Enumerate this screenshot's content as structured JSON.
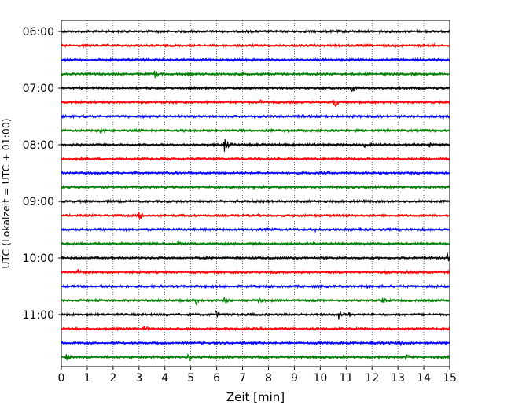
{
  "chart_data": {
    "type": "line",
    "title": "",
    "xlabel": "Zeit  [min]",
    "ylabel": "UTC (Lokalzeit = UTC + 01:00)",
    "xlim": [
      0,
      15
    ],
    "x_ticks": [
      0,
      1,
      2,
      3,
      4,
      5,
      6,
      7,
      8,
      9,
      10,
      11,
      12,
      13,
      14,
      15
    ],
    "grid": "vertical dotted lines at each minute",
    "trace_interval_minutes": 15,
    "color_cycle": [
      "#000000",
      "#ff0000",
      "#0000ff",
      "#008000"
    ],
    "y_tick_labels": [
      "06:00",
      "07:00",
      "08:00",
      "09:00",
      "10:00",
      "11:00"
    ],
    "traces": [
      {
        "start": "06:00",
        "color": "#000000",
        "events": [
          [
            5.0,
            0.35
          ],
          [
            12.3,
            0.4
          ]
        ]
      },
      {
        "start": "06:15",
        "color": "#ff0000",
        "events": [
          [
            1.8,
            0.35
          ],
          [
            14.4,
            0.3
          ]
        ]
      },
      {
        "start": "06:30",
        "color": "#0000ff",
        "events": [
          [
            1.2,
            0.3
          ],
          [
            3.2,
            0.3
          ],
          [
            12.8,
            0.3
          ]
        ]
      },
      {
        "start": "06:45",
        "color": "#008000",
        "events": [
          [
            3.6,
            0.9
          ],
          [
            9.2,
            0.4
          ]
        ]
      },
      {
        "start": "07:00",
        "color": "#000000",
        "events": [
          [
            11.2,
            1.0
          ],
          [
            10.8,
            0.45
          ]
        ]
      },
      {
        "start": "07:15",
        "color": "#ff0000",
        "events": [
          [
            10.5,
            1.3
          ],
          [
            7.7,
            0.55
          ],
          [
            2.0,
            0.3
          ]
        ]
      },
      {
        "start": "07:30",
        "color": "#0000ff",
        "events": [
          [
            2.6,
            0.35
          ],
          [
            9.3,
            0.35
          ]
        ]
      },
      {
        "start": "07:45",
        "color": "#008000",
        "events": [
          [
            1.5,
            0.85
          ],
          [
            7.2,
            0.4
          ],
          [
            11.2,
            0.35
          ]
        ]
      },
      {
        "start": "08:00",
        "color": "#000000",
        "events": [
          [
            6.3,
            1.35
          ],
          [
            11.7,
            0.55
          ],
          [
            14.2,
            0.6
          ]
        ]
      },
      {
        "start": "08:15",
        "color": "#ff0000",
        "events": [
          [
            4.2,
            0.35
          ],
          [
            12.6,
            0.4
          ]
        ]
      },
      {
        "start": "08:30",
        "color": "#0000ff",
        "events": [
          [
            4.5,
            0.45
          ],
          [
            10.0,
            0.4
          ]
        ]
      },
      {
        "start": "08:45",
        "color": "#008000",
        "events": [
          [
            2.5,
            0.3
          ],
          [
            13.0,
            0.3
          ]
        ]
      },
      {
        "start": "09:00",
        "color": "#000000",
        "events": [
          [
            6.1,
            0.35
          ],
          [
            11.3,
            0.35
          ]
        ]
      },
      {
        "start": "09:15",
        "color": "#ff0000",
        "events": [
          [
            3.0,
            1.05
          ],
          [
            7.6,
            0.35
          ]
        ]
      },
      {
        "start": "09:30",
        "color": "#0000ff",
        "events": [
          [
            9.8,
            0.55
          ],
          [
            14.8,
            0.3
          ]
        ]
      },
      {
        "start": "09:45",
        "color": "#008000",
        "events": [
          [
            4.5,
            0.6
          ],
          [
            11.1,
            0.3
          ]
        ]
      },
      {
        "start": "10:00",
        "color": "#000000",
        "events": [
          [
            14.9,
            0.9
          ],
          [
            4.2,
            0.35
          ]
        ]
      },
      {
        "start": "10:15",
        "color": "#ff0000",
        "events": [
          [
            0.6,
            0.7
          ],
          [
            13.3,
            0.4
          ]
        ]
      },
      {
        "start": "10:30",
        "color": "#0000ff",
        "events": [
          [
            11.8,
            0.55
          ],
          [
            4.5,
            0.3
          ]
        ]
      },
      {
        "start": "10:45",
        "color": "#008000",
        "events": [
          [
            5.2,
            0.8
          ],
          [
            6.3,
            0.85
          ],
          [
            7.6,
            0.75
          ],
          [
            12.4,
            0.75
          ]
        ]
      },
      {
        "start": "11:00",
        "color": "#000000",
        "events": [
          [
            5.95,
            0.8
          ],
          [
            10.7,
            1.2
          ],
          [
            11.1,
            0.6
          ]
        ]
      },
      {
        "start": "11:15",
        "color": "#ff0000",
        "events": [
          [
            3.2,
            0.7
          ],
          [
            7.0,
            0.3
          ]
        ]
      },
      {
        "start": "11:30",
        "color": "#0000ff",
        "events": [
          [
            13.1,
            0.8
          ],
          [
            6.8,
            0.35
          ]
        ]
      },
      {
        "start": "11:45",
        "color": "#008000",
        "events": [
          [
            0.2,
            0.75
          ],
          [
            4.9,
            0.9
          ],
          [
            13.3,
            0.75
          ]
        ]
      }
    ]
  }
}
